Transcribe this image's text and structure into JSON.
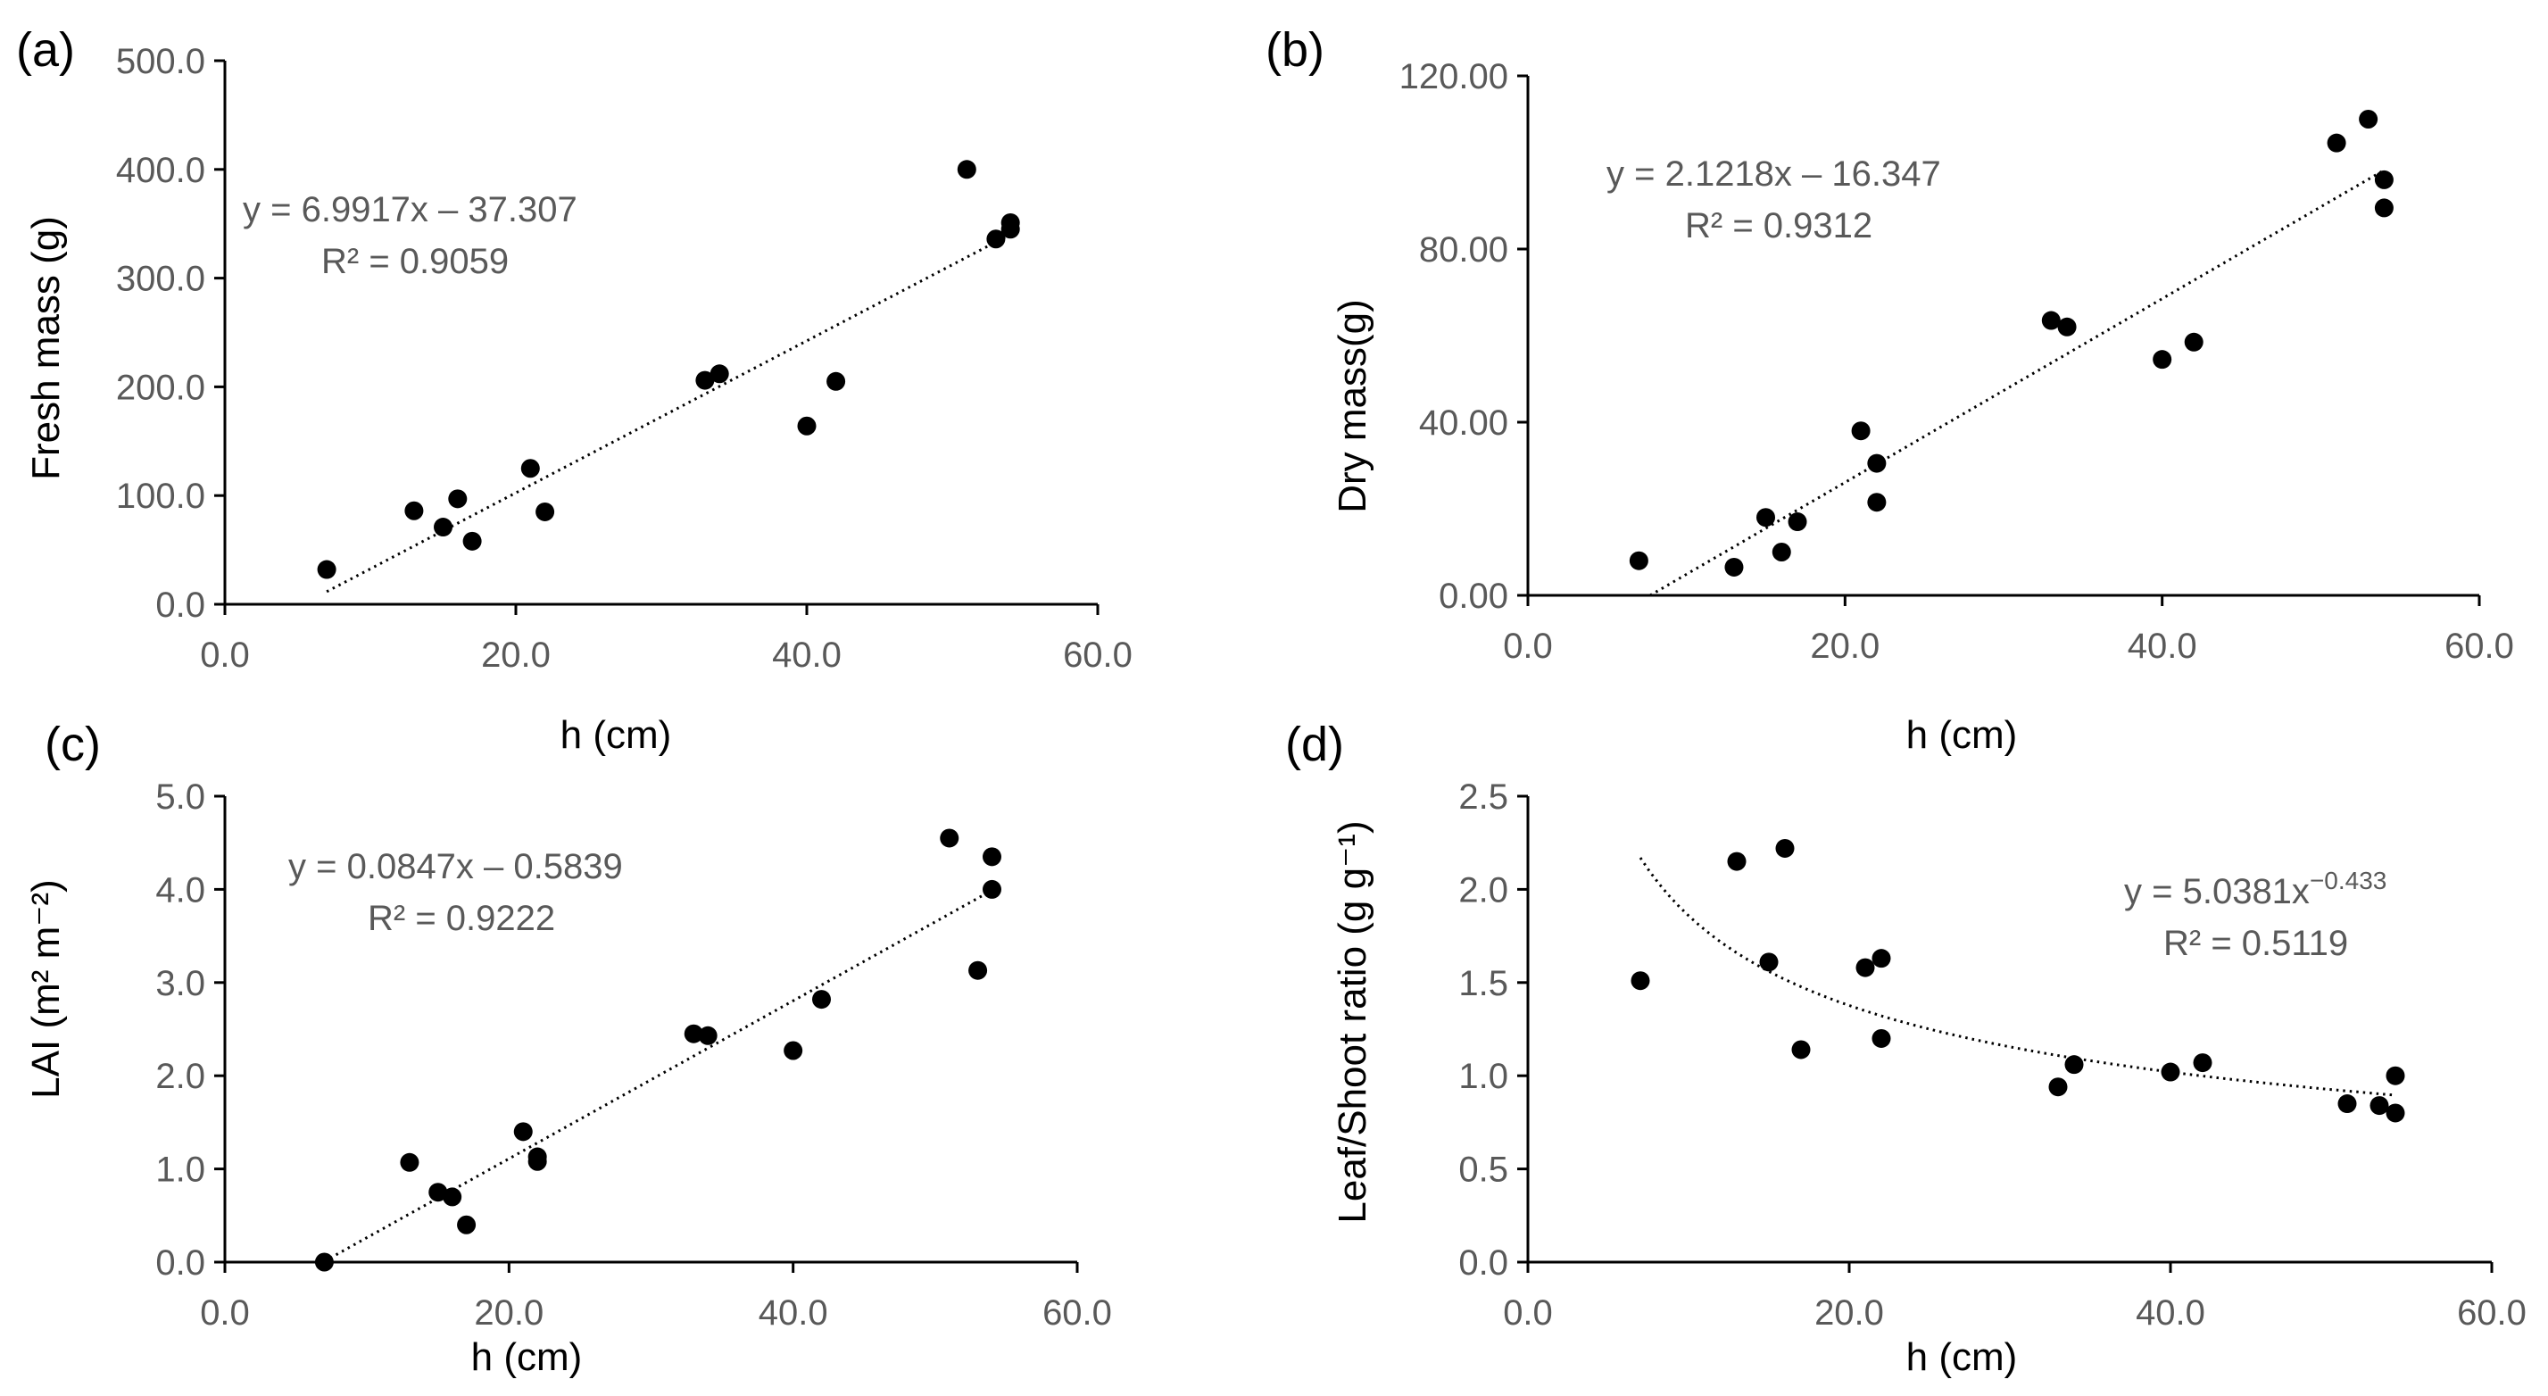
{
  "chart_data": [
    {
      "panel": "(a)",
      "type": "scatter",
      "xlabel": "h  (cm)",
      "ylabel": "Fresh mass (g)",
      "xlim": [
        0,
        60
      ],
      "ylim": [
        0,
        500
      ],
      "x_ticks": [
        "0.0",
        "20.0",
        "40.0",
        "60.0"
      ],
      "y_ticks": [
        "0.0",
        "100.0",
        "200.0",
        "300.0",
        "400.0",
        "500.0"
      ],
      "x_tick_values": [
        0,
        20,
        40,
        60
      ],
      "y_tick_values": [
        0,
        100,
        200,
        300,
        400,
        500
      ],
      "points": [
        [
          7,
          32
        ],
        [
          13,
          86
        ],
        [
          15,
          71
        ],
        [
          16,
          97
        ],
        [
          17,
          58
        ],
        [
          21,
          125
        ],
        [
          22,
          85
        ],
        [
          33,
          206
        ],
        [
          34,
          212
        ],
        [
          40,
          164
        ],
        [
          42,
          205
        ],
        [
          51,
          400
        ],
        [
          53,
          336
        ],
        [
          54,
          345
        ],
        [
          54,
          351
        ]
      ],
      "trendline": {
        "kind": "linear",
        "slope": 6.9917,
        "intercept": -37.307,
        "x_range": [
          7,
          54
        ]
      },
      "equation": "y = 6.9917x – 37.307",
      "r2": "R² = 0.9059"
    },
    {
      "panel": "(b)",
      "type": "scatter",
      "xlabel": "h    (cm)",
      "ylabel": "Dry mass(g)",
      "xlim": [
        0,
        60
      ],
      "ylim": [
        0,
        120
      ],
      "x_ticks": [
        "0.0",
        "20.0",
        "40.0",
        "60.0"
      ],
      "y_ticks": [
        "0.00",
        "40.00",
        "80.00",
        "120.00"
      ],
      "x_tick_values": [
        0,
        20,
        40,
        60
      ],
      "y_tick_values": [
        0,
        40,
        80,
        120
      ],
      "points": [
        [
          7,
          8
        ],
        [
          13,
          6.5
        ],
        [
          15,
          18
        ],
        [
          16,
          10
        ],
        [
          17,
          17
        ],
        [
          21,
          38
        ],
        [
          22,
          30.5
        ],
        [
          22,
          21.5
        ],
        [
          33,
          63.5
        ],
        [
          34,
          62
        ],
        [
          40,
          54.5
        ],
        [
          42,
          58.5
        ],
        [
          51,
          104.5
        ],
        [
          53,
          110
        ],
        [
          54,
          96
        ],
        [
          54,
          89.5
        ]
      ],
      "trendline": {
        "kind": "linear",
        "slope": 2.1218,
        "intercept": -16.347,
        "x_range": [
          7.7,
          54
        ]
      },
      "equation": "y = 2.1218x – 16.347",
      "r2": "R² = 0.9312"
    },
    {
      "panel": "(c)",
      "type": "scatter",
      "xlabel": "h  (cm)",
      "ylabel": "LAI  (m² m⁻²)",
      "xlim": [
        0,
        60
      ],
      "ylim": [
        0,
        5
      ],
      "x_ticks": [
        "0.0",
        "20.0",
        "40.0",
        "60.0"
      ],
      "y_ticks": [
        "0.0",
        "1.0",
        "2.0",
        "3.0",
        "4.0",
        "5.0"
      ],
      "x_tick_values": [
        0,
        20,
        40,
        60
      ],
      "y_tick_values": [
        0,
        1,
        2,
        3,
        4,
        5
      ],
      "points": [
        [
          7,
          0.0
        ],
        [
          13,
          1.07
        ],
        [
          15,
          0.75
        ],
        [
          16,
          0.7
        ],
        [
          17,
          0.4
        ],
        [
          21,
          1.4
        ],
        [
          22,
          1.13
        ],
        [
          22,
          1.08
        ],
        [
          33,
          2.45
        ],
        [
          34,
          2.43
        ],
        [
          40,
          2.27
        ],
        [
          42,
          2.82
        ],
        [
          51,
          4.55
        ],
        [
          53,
          3.13
        ],
        [
          54,
          4.35
        ],
        [
          54,
          4.0
        ]
      ],
      "trendline": {
        "kind": "linear",
        "slope": 0.0847,
        "intercept": -0.5839,
        "x_range": [
          7,
          54
        ]
      },
      "equation": "y = 0.0847x – 0.5839",
      "r2": "R² = 0.9222"
    },
    {
      "panel": "(d)",
      "type": "scatter",
      "xlabel": "h    (cm)",
      "ylabel": "Leaf/Shoot ratio (g g⁻¹)",
      "xlim": [
        0,
        60
      ],
      "ylim": [
        0,
        2.5
      ],
      "x_ticks": [
        "0.0",
        "20.0",
        "40.0",
        "60.0"
      ],
      "y_ticks": [
        "0.0",
        "0.5",
        "1.0",
        "1.5",
        "2.0",
        "2.5"
      ],
      "x_tick_values": [
        0,
        20,
        40,
        60
      ],
      "y_tick_values": [
        0,
        0.5,
        1,
        1.5,
        2,
        2.5
      ],
      "points": [
        [
          7,
          1.51
        ],
        [
          13,
          2.15
        ],
        [
          15,
          1.61
        ],
        [
          16,
          2.22
        ],
        [
          17,
          1.14
        ],
        [
          21,
          1.58
        ],
        [
          22,
          1.63
        ],
        [
          22,
          1.2
        ],
        [
          33,
          0.94
        ],
        [
          34,
          1.06
        ],
        [
          40,
          1.02
        ],
        [
          42,
          1.07
        ],
        [
          51,
          0.85
        ],
        [
          53,
          0.84
        ],
        [
          54,
          1.0
        ],
        [
          54,
          0.8
        ]
      ],
      "trendline": {
        "kind": "power",
        "coef": 5.0381,
        "exponent": -0.433,
        "x_range": [
          7,
          54
        ]
      },
      "equation": "y = 5.0381x",
      "equation_exponent": "−0.433",
      "r2": "R² = 0.5119"
    }
  ],
  "colors": {
    "points": "#000000",
    "axis": "#000000",
    "tick_text": "#595959",
    "equation_text": "#595959"
  }
}
